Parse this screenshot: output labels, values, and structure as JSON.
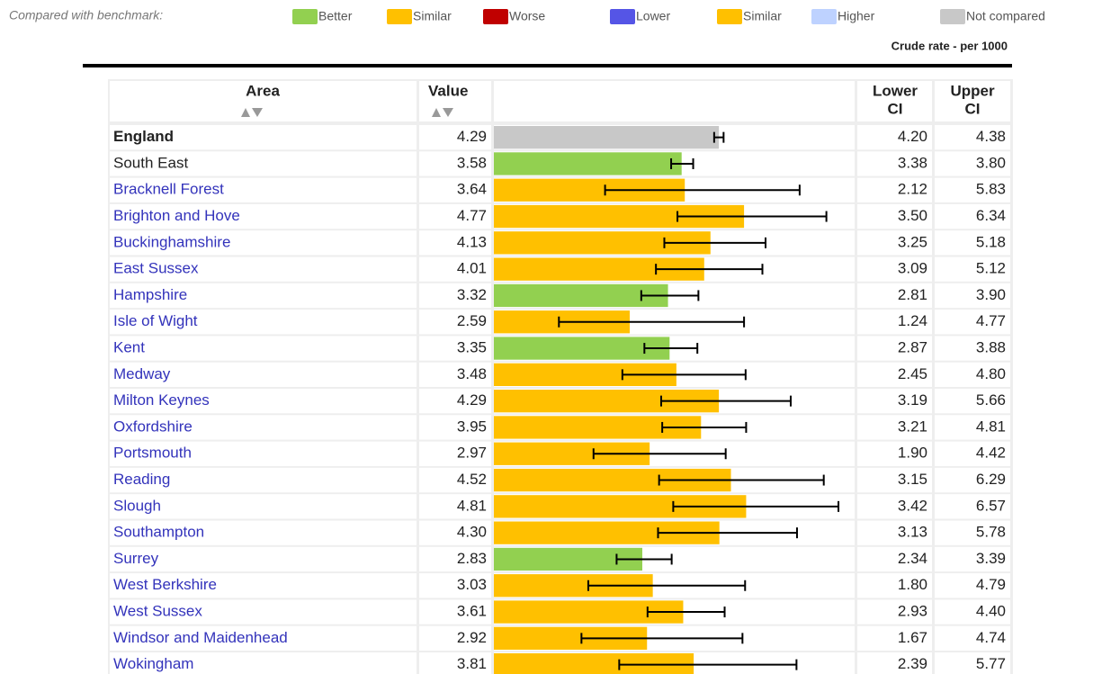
{
  "legend": {
    "label": "Compared with benchmark:",
    "items": [
      {
        "name": "Better",
        "color": "#92d050"
      },
      {
        "name": "Similar",
        "color": "#ffc000"
      },
      {
        "name": "Worse",
        "color": "#c00000"
      },
      {
        "name": "Lower",
        "color": "#5555e6"
      },
      {
        "name": "Similar",
        "color": "#ffc000"
      },
      {
        "name": "Higher",
        "color": "#bed2ff"
      },
      {
        "name": "Not compared",
        "color": "#c8c8c8"
      }
    ]
  },
  "unit": "Crude rate - per 1000",
  "table": {
    "headers": {
      "area": [
        "Area"
      ],
      "value": [
        "Value"
      ],
      "lower": [
        "Lower",
        "CI"
      ],
      "upper": [
        "Upper",
        "CI"
      ]
    },
    "rows": [
      {
        "area": "England",
        "value": "4.29",
        "lower": "4.20",
        "upper": "4.38",
        "color": "#c8c8c8",
        "link": false
      },
      {
        "area": "South East",
        "value": "3.58",
        "lower": "3.38",
        "upper": "3.80",
        "color": "#92d050",
        "link": false
      },
      {
        "area": "Bracknell Forest",
        "value": "3.64",
        "lower": "2.12",
        "upper": "5.83",
        "color": "#ffc000",
        "link": true
      },
      {
        "area": "Brighton and Hove",
        "value": "4.77",
        "lower": "3.50",
        "upper": "6.34",
        "color": "#ffc000",
        "link": true
      },
      {
        "area": "Buckinghamshire",
        "value": "4.13",
        "lower": "3.25",
        "upper": "5.18",
        "color": "#ffc000",
        "link": true
      },
      {
        "area": "East Sussex",
        "value": "4.01",
        "lower": "3.09",
        "upper": "5.12",
        "color": "#ffc000",
        "link": true
      },
      {
        "area": "Hampshire",
        "value": "3.32",
        "lower": "2.81",
        "upper": "3.90",
        "color": "#92d050",
        "link": true
      },
      {
        "area": "Isle of Wight",
        "value": "2.59",
        "lower": "1.24",
        "upper": "4.77",
        "color": "#ffc000",
        "link": true
      },
      {
        "area": "Kent",
        "value": "3.35",
        "lower": "2.87",
        "upper": "3.88",
        "color": "#92d050",
        "link": true
      },
      {
        "area": "Medway",
        "value": "3.48",
        "lower": "2.45",
        "upper": "4.80",
        "color": "#ffc000",
        "link": true
      },
      {
        "area": "Milton Keynes",
        "value": "4.29",
        "lower": "3.19",
        "upper": "5.66",
        "color": "#ffc000",
        "link": true
      },
      {
        "area": "Oxfordshire",
        "value": "3.95",
        "lower": "3.21",
        "upper": "4.81",
        "color": "#ffc000",
        "link": true
      },
      {
        "area": "Portsmouth",
        "value": "2.97",
        "lower": "1.90",
        "upper": "4.42",
        "color": "#ffc000",
        "link": true
      },
      {
        "area": "Reading",
        "value": "4.52",
        "lower": "3.15",
        "upper": "6.29",
        "color": "#ffc000",
        "link": true
      },
      {
        "area": "Slough",
        "value": "4.81",
        "lower": "3.42",
        "upper": "6.57",
        "color": "#ffc000",
        "link": true
      },
      {
        "area": "Southampton",
        "value": "4.30",
        "lower": "3.13",
        "upper": "5.78",
        "color": "#ffc000",
        "link": true
      },
      {
        "area": "Surrey",
        "value": "2.83",
        "lower": "2.34",
        "upper": "3.39",
        "color": "#92d050",
        "link": true
      },
      {
        "area": "West Berkshire",
        "value": "3.03",
        "lower": "1.80",
        "upper": "4.79",
        "color": "#ffc000",
        "link": true
      },
      {
        "area": "West Sussex",
        "value": "3.61",
        "lower": "2.93",
        "upper": "4.40",
        "color": "#ffc000",
        "link": true
      },
      {
        "area": "Windsor and Maidenhead",
        "value": "2.92",
        "lower": "1.67",
        "upper": "4.74",
        "color": "#ffc000",
        "link": true
      },
      {
        "area": "Wokingham",
        "value": "3.81",
        "lower": "2.39",
        "upper": "5.77",
        "color": "#ffc000",
        "link": true
      }
    ]
  }
}
